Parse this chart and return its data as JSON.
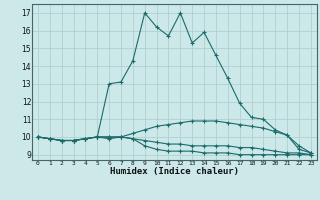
{
  "title": "",
  "xlabel": "Humidex (Indice chaleur)",
  "bg_color": "#cce8e8",
  "line_color": "#1a6b6b",
  "grid_color": "#b0d0d0",
  "xlim": [
    -0.5,
    23.5
  ],
  "ylim": [
    8.7,
    17.5
  ],
  "yticks": [
    9,
    10,
    11,
    12,
    13,
    14,
    15,
    16,
    17
  ],
  "xticks": [
    0,
    1,
    2,
    3,
    4,
    5,
    6,
    7,
    8,
    9,
    10,
    11,
    12,
    13,
    14,
    15,
    16,
    17,
    18,
    19,
    20,
    21,
    22,
    23
  ],
  "lines": [
    {
      "x": [
        0,
        1,
        2,
        3,
        4,
        5,
        6,
        7,
        8,
        9,
        10,
        11,
        12,
        13,
        14,
        15,
        16,
        17,
        18,
        19,
        20,
        21,
        22,
        23
      ],
      "y": [
        10.0,
        9.9,
        9.8,
        9.8,
        9.9,
        10.0,
        13.0,
        13.1,
        14.3,
        17.0,
        16.2,
        15.7,
        17.0,
        15.3,
        15.9,
        14.6,
        13.3,
        11.9,
        11.1,
        11.0,
        10.4,
        10.1,
        9.3,
        9.1
      ]
    },
    {
      "x": [
        0,
        1,
        2,
        3,
        4,
        5,
        6,
        7,
        8,
        9,
        10,
        11,
        12,
        13,
        14,
        15,
        16,
        17,
        18,
        19,
        20,
        21,
        22,
        23
      ],
      "y": [
        10.0,
        9.9,
        9.8,
        9.8,
        9.9,
        10.0,
        10.0,
        10.0,
        10.2,
        10.4,
        10.6,
        10.7,
        10.8,
        10.9,
        10.9,
        10.9,
        10.8,
        10.7,
        10.6,
        10.5,
        10.3,
        10.1,
        9.5,
        9.1
      ]
    },
    {
      "x": [
        0,
        1,
        2,
        3,
        4,
        5,
        6,
        7,
        8,
        9,
        10,
        11,
        12,
        13,
        14,
        15,
        16,
        17,
        18,
        19,
        20,
        21,
        22,
        23
      ],
      "y": [
        10.0,
        9.9,
        9.8,
        9.8,
        9.9,
        10.0,
        10.0,
        10.0,
        9.9,
        9.8,
        9.7,
        9.6,
        9.6,
        9.5,
        9.5,
        9.5,
        9.5,
        9.4,
        9.4,
        9.3,
        9.2,
        9.1,
        9.1,
        9.0
      ]
    },
    {
      "x": [
        0,
        1,
        2,
        3,
        4,
        5,
        6,
        7,
        8,
        9,
        10,
        11,
        12,
        13,
        14,
        15,
        16,
        17,
        18,
        19,
        20,
        21,
        22,
        23
      ],
      "y": [
        10.0,
        9.9,
        9.8,
        9.8,
        9.9,
        10.0,
        9.9,
        10.0,
        9.9,
        9.5,
        9.3,
        9.2,
        9.2,
        9.2,
        9.1,
        9.1,
        9.1,
        9.0,
        9.0,
        9.0,
        9.0,
        9.0,
        9.0,
        9.0
      ]
    }
  ]
}
